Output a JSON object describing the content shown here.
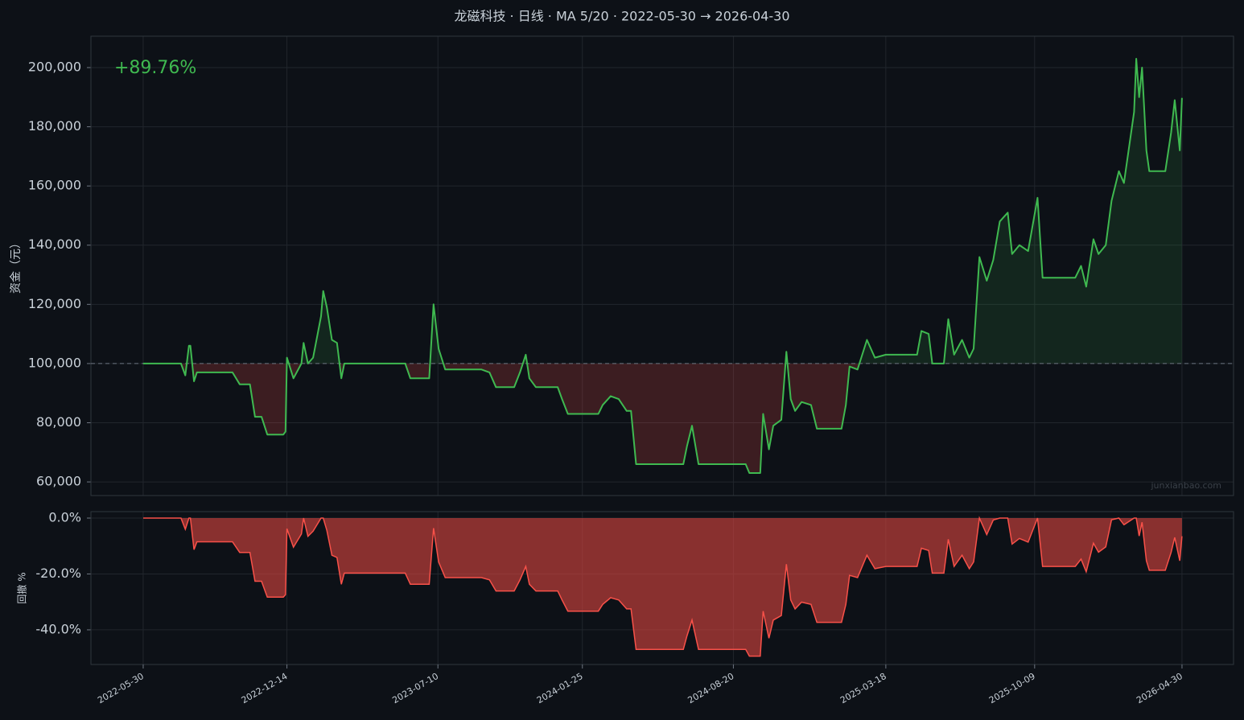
{
  "chart_data": [
    {
      "type": "line",
      "title": "龙磁科技 · 日线 · MA 5/20 · 2022-05-30 → 2026-04-30",
      "ylabel": "资金（元）",
      "annotation": "+89.76%",
      "watermark": "junxianbao.com",
      "x": [
        "2022-05-30",
        "2022-07-21",
        "2022-07-27",
        "2022-08-01",
        "2022-08-03",
        "2022-08-08",
        "2022-08-12",
        "2022-09-30",
        "2022-10-10",
        "2022-10-24",
        "2022-10-31",
        "2022-11-09",
        "2022-11-17",
        "2022-12-09",
        "2022-12-12",
        "2022-12-14",
        "2022-12-23",
        "2023-01-03",
        "2023-01-06",
        "2023-01-12",
        "2023-01-19",
        "2023-01-30",
        "2023-02-02",
        "2023-02-07",
        "2023-02-14",
        "2023-02-21",
        "2023-02-27",
        "2023-03-03",
        "2023-05-26",
        "2023-06-02",
        "2023-06-28",
        "2023-07-04",
        "2023-07-11",
        "2023-07-20",
        "2023-09-08",
        "2023-09-19",
        "2023-09-28",
        "2023-10-23",
        "2023-10-31",
        "2023-11-08",
        "2023-11-13",
        "2023-11-22",
        "2023-12-22",
        "2023-12-28",
        "2024-01-05",
        "2024-02-16",
        "2024-02-22",
        "2024-03-04",
        "2024-03-15",
        "2024-03-26",
        "2024-04-01",
        "2024-04-08",
        "2024-06-12",
        "2024-06-17",
        "2024-06-24",
        "2024-07-03",
        "2024-09-06",
        "2024-09-11",
        "2024-09-26",
        "2024-09-30",
        "2024-10-08",
        "2024-10-14",
        "2024-10-25",
        "2024-11-01",
        "2024-11-07",
        "2024-11-13",
        "2024-11-22",
        "2024-12-05",
        "2024-12-13",
        "2025-01-16",
        "2025-01-22",
        "2025-01-27",
        "2025-02-07",
        "2025-02-20",
        "2025-03-03",
        "2025-03-18",
        "2025-04-30",
        "2025-05-06",
        "2025-05-16",
        "2025-05-21",
        "2025-06-06",
        "2025-06-12",
        "2025-06-20",
        "2025-07-01",
        "2025-07-11",
        "2025-07-17",
        "2025-07-25",
        "2025-08-04",
        "2025-08-13",
        "2025-08-22",
        "2025-09-02",
        "2025-09-08",
        "2025-09-18",
        "2025-09-30",
        "2025-10-13",
        "2025-10-20",
        "2025-12-04",
        "2025-12-12",
        "2025-12-19",
        "2025-12-29",
        "2026-01-05",
        "2026-01-15",
        "2026-01-23",
        "2026-02-02",
        "2026-02-09",
        "2026-02-23",
        "2026-02-26",
        "2026-03-02",
        "2026-03-06",
        "2026-03-12",
        "2026-03-16",
        "2026-04-07",
        "2026-04-15",
        "2026-04-20",
        "2026-04-27",
        "2026-04-30"
      ],
      "values": [
        100000,
        100000,
        96000,
        106000,
        106000,
        94000,
        97000,
        97000,
        93000,
        93000,
        82000,
        82000,
        76000,
        76000,
        77000,
        102000,
        95000,
        100000,
        107000,
        100000,
        102000,
        116000,
        124500,
        119000,
        108000,
        107000,
        95000,
        100000,
        100000,
        95000,
        95000,
        120000,
        105000,
        98000,
        98000,
        97000,
        92000,
        92000,
        97000,
        103000,
        95000,
        92000,
        92000,
        88000,
        83000,
        83000,
        86000,
        89000,
        88000,
        84000,
        84000,
        66000,
        66000,
        72000,
        79000,
        66000,
        66000,
        63000,
        63000,
        83000,
        71000,
        79000,
        81000,
        104000,
        88000,
        84000,
        87000,
        86000,
        78000,
        78000,
        86000,
        99000,
        98000,
        108000,
        102000,
        103000,
        103000,
        111000,
        110000,
        100000,
        100000,
        115000,
        103000,
        108000,
        102000,
        105000,
        136000,
        128000,
        135000,
        148000,
        151000,
        137000,
        140000,
        138000,
        156000,
        129000,
        129000,
        133000,
        126000,
        142000,
        137000,
        140000,
        155000,
        165000,
        161000,
        185000,
        203000,
        190000,
        200000,
        172000,
        165000,
        165000,
        178000,
        189000,
        172000,
        189760
      ],
      "color": "#3fb950",
      "above_fill": "rgba(63,185,80,0.13)",
      "below_fill": "rgba(248,81,73,0.20)",
      "baseline": 100000,
      "xlim": [
        "2022-03-19",
        "2026-07-10"
      ],
      "ylim": [
        55400,
        210600
      ],
      "yticks": [
        {
          "value": 60000,
          "label": "60,000"
        },
        {
          "value": 80000,
          "label": "80,000"
        },
        {
          "value": 100000,
          "label": "100,000"
        },
        {
          "value": 120000,
          "label": "120,000"
        },
        {
          "value": 140000,
          "label": "140,000"
        },
        {
          "value": 160000,
          "label": "160,000"
        },
        {
          "value": 180000,
          "label": "180,000"
        },
        {
          "value": 200000,
          "label": "200,000"
        }
      ],
      "grid": true
    },
    {
      "type": "area",
      "ylabel": "回撤 %",
      "x": [
        "2022-05-30",
        "2022-07-21",
        "2022-07-27",
        "2022-08-01",
        "2022-08-03",
        "2022-08-08",
        "2022-08-12",
        "2022-09-30",
        "2022-10-10",
        "2022-10-24",
        "2022-10-31",
        "2022-11-09",
        "2022-11-17",
        "2022-12-09",
        "2022-12-12",
        "2022-12-14",
        "2022-12-23",
        "2023-01-03",
        "2023-01-06",
        "2023-01-12",
        "2023-01-19",
        "2023-01-30",
        "2023-02-02",
        "2023-02-07",
        "2023-02-14",
        "2023-02-21",
        "2023-02-27",
        "2023-03-03",
        "2023-05-26",
        "2023-06-02",
        "2023-06-28",
        "2023-07-04",
        "2023-07-11",
        "2023-07-20",
        "2023-09-08",
        "2023-09-19",
        "2023-09-28",
        "2023-10-23",
        "2023-10-31",
        "2023-11-08",
        "2023-11-13",
        "2023-11-22",
        "2023-12-22",
        "2023-12-28",
        "2024-01-05",
        "2024-02-16",
        "2024-02-22",
        "2024-03-04",
        "2024-03-15",
        "2024-03-26",
        "2024-04-01",
        "2024-04-08",
        "2024-06-12",
        "2024-06-17",
        "2024-06-24",
        "2024-07-03",
        "2024-09-06",
        "2024-09-11",
        "2024-09-26",
        "2024-09-30",
        "2024-10-08",
        "2024-10-14",
        "2024-10-25",
        "2024-11-01",
        "2024-11-07",
        "2024-11-13",
        "2024-11-22",
        "2024-12-05",
        "2024-12-13",
        "2025-01-16",
        "2025-01-22",
        "2025-01-27",
        "2025-02-07",
        "2025-02-20",
        "2025-03-03",
        "2025-03-18",
        "2025-04-30",
        "2025-05-06",
        "2025-05-16",
        "2025-05-21",
        "2025-06-06",
        "2025-06-12",
        "2025-06-20",
        "2025-07-01",
        "2025-07-11",
        "2025-07-17",
        "2025-07-25",
        "2025-08-04",
        "2025-08-13",
        "2025-08-22",
        "2025-09-02",
        "2025-09-08",
        "2025-09-18",
        "2025-09-30",
        "2025-10-13",
        "2025-10-20",
        "2025-12-04",
        "2025-12-12",
        "2025-12-19",
        "2025-12-29",
        "2026-01-05",
        "2026-01-15",
        "2026-01-23",
        "2026-02-02",
        "2026-02-09",
        "2026-02-23",
        "2026-02-26",
        "2026-03-02",
        "2026-03-06",
        "2026-03-12",
        "2026-03-16",
        "2026-04-07",
        "2026-04-15",
        "2026-04-20",
        "2026-04-27",
        "2026-04-30"
      ],
      "values": [
        0,
        0,
        -4.0,
        0,
        0,
        -11.3,
        -8.5,
        -8.5,
        -12.3,
        -12.3,
        -22.6,
        -22.6,
        -28.3,
        -28.3,
        -27.4,
        -3.8,
        -10.4,
        -5.7,
        0,
        -6.5,
        -4.7,
        0,
        0,
        -4.4,
        -13.3,
        -14.1,
        -23.7,
        -19.7,
        -19.7,
        -23.7,
        -23.7,
        -3.6,
        -15.7,
        -21.3,
        -21.3,
        -22.1,
        -26.1,
        -26.1,
        -22.1,
        -17.3,
        -23.7,
        -26.1,
        -26.1,
        -29.3,
        -33.3,
        -33.3,
        -30.9,
        -28.5,
        -29.3,
        -32.5,
        -32.5,
        -47.0,
        -47.0,
        -42.2,
        -36.5,
        -47.0,
        -47.0,
        -49.4,
        -49.4,
        -33.3,
        -43.0,
        -36.5,
        -34.9,
        -16.5,
        -29.3,
        -32.5,
        -30.1,
        -30.9,
        -37.3,
        -37.3,
        -30.9,
        -20.5,
        -21.3,
        -13.3,
        -18.1,
        -17.3,
        -17.3,
        -10.8,
        -11.6,
        -19.7,
        -19.7,
        -7.6,
        -17.3,
        -13.3,
        -18.1,
        -15.7,
        0,
        -5.9,
        -0.7,
        0,
        0,
        -9.3,
        -7.3,
        -8.6,
        0,
        -17.3,
        -17.3,
        -14.7,
        -19.2,
        -9.0,
        -12.2,
        -10.3,
        -0.6,
        0,
        -2.4,
        0,
        0,
        -6.4,
        -1.5,
        -15.3,
        -18.7,
        -18.7,
        -12.3,
        -6.9,
        -15.3,
        -6.5
      ],
      "color": "#f85149",
      "fill": "rgba(220,70,64,0.6)",
      "xlim": [
        "2022-03-19",
        "2026-07-10"
      ],
      "xticks": [
        "2022-05-30",
        "2022-12-14",
        "2023-07-10",
        "2024-01-25",
        "2024-08-20",
        "2025-03-18",
        "2025-10-09",
        "2026-04-30"
      ],
      "ylim": [
        -52.4,
        2.3
      ],
      "yticks": [
        {
          "value": 0,
          "label": "0.0%"
        },
        {
          "value": -20,
          "label": "-20.0%"
        },
        {
          "value": -40,
          "label": "-40.0%"
        }
      ],
      "grid": true
    }
  ]
}
